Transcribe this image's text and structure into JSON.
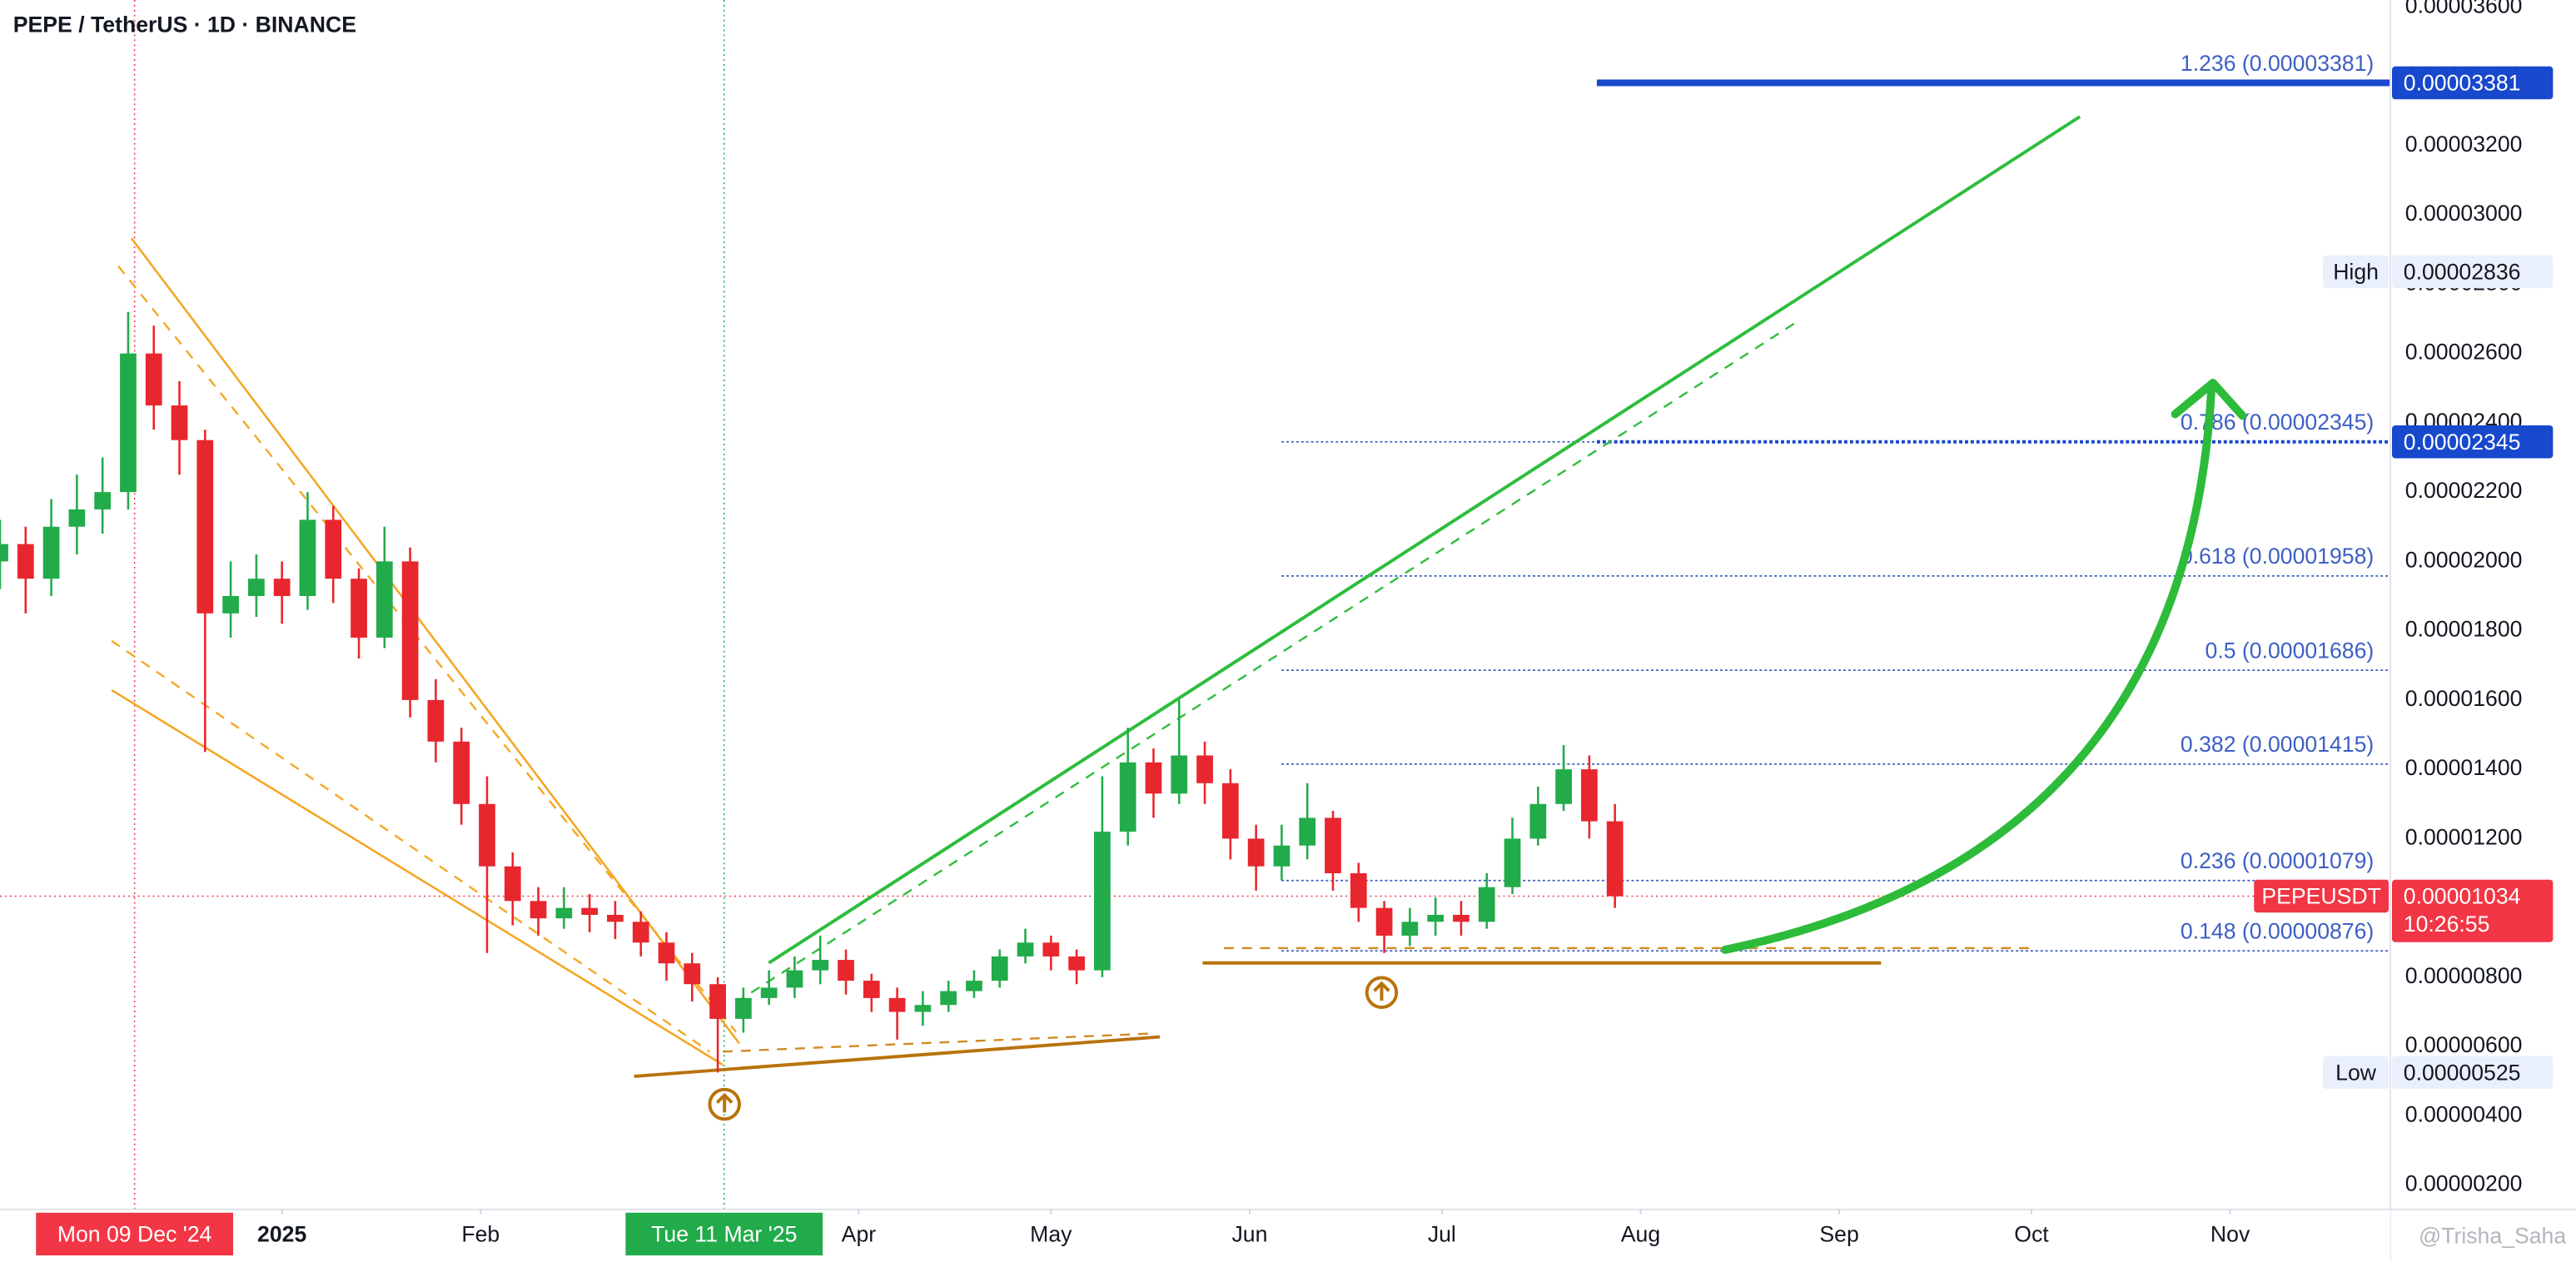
{
  "chart_data": {
    "type": "candlestick",
    "title": "PEPE / TetherUS · 1D · BINANCE",
    "up_color": "#22ab4a",
    "down_color": "#e8262e",
    "xlim": [
      "2024-11-18",
      "2025-11-26"
    ],
    "ylim": [
      1.3e-06,
      3.62e-05
    ],
    "yticks": [
      {
        "value": 2e-06,
        "label": "0.00000200"
      },
      {
        "value": 4e-06,
        "label": "0.00000400"
      },
      {
        "value": 6e-06,
        "label": "0.00000600"
      },
      {
        "value": 8e-06,
        "label": "0.00000800"
      },
      {
        "value": 1e-05,
        "label": "0.00001000"
      },
      {
        "value": 1.2e-05,
        "label": "0.00001200"
      },
      {
        "value": 1.4e-05,
        "label": "0.00001400"
      },
      {
        "value": 1.6e-05,
        "label": "0.00001600"
      },
      {
        "value": 1.8e-05,
        "label": "0.00001800"
      },
      {
        "value": 2e-05,
        "label": "0.00002000"
      },
      {
        "value": 2.2e-05,
        "label": "0.00002200"
      },
      {
        "value": 2.4e-05,
        "label": "0.00002400"
      },
      {
        "value": 2.6e-05,
        "label": "0.00002600"
      },
      {
        "value": 2.8e-05,
        "label": "0.00002800"
      },
      {
        "value": 3e-05,
        "label": "0.00003000"
      },
      {
        "value": 3.2e-05,
        "label": "0.00003200"
      },
      {
        "value": 3.4e-05,
        "label": "0.00003400"
      },
      {
        "value": 3.6e-05,
        "label": "0.00003600"
      }
    ],
    "xticks": [
      {
        "value": "2025-01-01",
        "label": "2025"
      },
      {
        "value": "2025-02-01",
        "label": "Feb"
      },
      {
        "value": "2025-04-01",
        "label": "Apr"
      },
      {
        "value": "2025-05-01",
        "label": "May"
      },
      {
        "value": "2025-06-01",
        "label": "Jun"
      },
      {
        "value": "2025-07-01",
        "label": "Jul"
      },
      {
        "value": "2025-08-01",
        "label": "Aug"
      },
      {
        "value": "2025-09-01",
        "label": "Sep"
      },
      {
        "value": "2025-10-01",
        "label": "Oct"
      },
      {
        "value": "2025-11-01",
        "label": "Nov"
      }
    ],
    "x_markers": [
      {
        "value": "2024-12-09",
        "label": "Mon 09 Dec '24",
        "color": "#f23645"
      },
      {
        "value": "2025-03-11",
        "label": "Tue 11 Mar '25",
        "color": "#22ab4a"
      }
    ],
    "x": [
      "2024-11-18",
      "2024-11-22",
      "2024-11-26",
      "2024-11-30",
      "2024-12-04",
      "2024-12-08",
      "2024-12-12",
      "2024-12-16",
      "2024-12-20",
      "2024-12-24",
      "2024-12-28",
      "2025-01-01",
      "2025-01-05",
      "2025-01-09",
      "2025-01-13",
      "2025-01-17",
      "2025-01-21",
      "2025-01-25",
      "2025-01-29",
      "2025-02-02",
      "2025-02-06",
      "2025-02-10",
      "2025-02-14",
      "2025-02-18",
      "2025-02-22",
      "2025-02-26",
      "2025-03-02",
      "2025-03-06",
      "2025-03-10",
      "2025-03-14",
      "2025-03-18",
      "2025-03-22",
      "2025-03-26",
      "2025-03-30",
      "2025-04-03",
      "2025-04-07",
      "2025-04-11",
      "2025-04-15",
      "2025-04-19",
      "2025-04-23",
      "2025-04-27",
      "2025-05-01",
      "2025-05-05",
      "2025-05-09",
      "2025-05-13",
      "2025-05-17",
      "2025-05-21",
      "2025-05-25",
      "2025-05-29",
      "2025-06-02",
      "2025-06-06",
      "2025-06-10",
      "2025-06-14",
      "2025-06-18",
      "2025-06-22",
      "2025-06-26",
      "2025-06-30",
      "2025-07-04",
      "2025-07-08",
      "2025-07-12",
      "2025-07-16",
      "2025-07-20",
      "2025-07-24",
      "2025-07-28"
    ],
    "open": [
      2e-05,
      2.05e-05,
      1.95e-05,
      2.1e-05,
      2.15e-05,
      2.2e-05,
      2.6e-05,
      2.45e-05,
      2.35e-05,
      1.85e-05,
      1.9e-05,
      1.95e-05,
      1.9e-05,
      2.12e-05,
      1.95e-05,
      1.78e-05,
      2e-05,
      1.6e-05,
      1.48e-05,
      1.3e-05,
      1.12e-05,
      1.02e-05,
      9.7e-06,
      1e-05,
      9.8e-06,
      9.6e-06,
      9e-06,
      8.4e-06,
      7.8e-06,
      6.8e-06,
      7.4e-06,
      7.7e-06,
      8.2e-06,
      8.5e-06,
      7.9e-06,
      7.4e-06,
      7e-06,
      7.2e-06,
      7.6e-06,
      7.9e-06,
      8.6e-06,
      9e-06,
      8.6e-06,
      8.2e-06,
      1.22e-05,
      1.42e-05,
      1.33e-05,
      1.44e-05,
      1.36e-05,
      1.2e-05,
      1.12e-05,
      1.18e-05,
      1.26e-05,
      1.1e-05,
      1e-05,
      9.2e-06,
      9.6e-06,
      9.8e-06,
      9.6e-06,
      1.06e-05,
      1.2e-05,
      1.3e-05,
      1.4e-05,
      1.25e-05
    ],
    "high": [
      2.12e-05,
      2.1e-05,
      2.18e-05,
      2.25e-05,
      2.3e-05,
      2.72e-05,
      2.68e-05,
      2.52e-05,
      2.38e-05,
      2e-05,
      2.02e-05,
      2e-05,
      2.2e-05,
      2.16e-05,
      1.98e-05,
      2.1e-05,
      2.04e-05,
      1.66e-05,
      1.52e-05,
      1.38e-05,
      1.16e-05,
      1.06e-05,
      1.06e-05,
      1.04e-05,
      1.02e-05,
      9.9e-06,
      9.3e-06,
      8.7e-06,
      8e-06,
      7.7e-06,
      8.2e-06,
      8.6e-06,
      9.2e-06,
      8.8e-06,
      8.1e-06,
      7.7e-06,
      7.6e-06,
      7.9e-06,
      8.2e-06,
      8.8e-06,
      9.4e-06,
      9.2e-06,
      8.8e-06,
      1.38e-05,
      1.52e-05,
      1.46e-05,
      1.6e-05,
      1.48e-05,
      1.4e-05,
      1.24e-05,
      1.24e-05,
      1.36e-05,
      1.28e-05,
      1.13e-05,
      1.02e-05,
      1e-05,
      1.03e-05,
      1.02e-05,
      1.1e-05,
      1.26e-05,
      1.35e-05,
      1.47e-05,
      1.44e-05,
      1.3e-05
    ],
    "low": [
      1.92e-05,
      1.85e-05,
      1.9e-05,
      2.02e-05,
      2.08e-05,
      2.15e-05,
      2.38e-05,
      2.25e-05,
      1.45e-05,
      1.78e-05,
      1.84e-05,
      1.82e-05,
      1.86e-05,
      1.88e-05,
      1.72e-05,
      1.75e-05,
      1.55e-05,
      1.42e-05,
      1.24e-05,
      8.7e-06,
      9.5e-06,
      9.2e-06,
      9.4e-06,
      9.3e-06,
      9.1e-06,
      8.6e-06,
      7.9e-06,
      7.3e-06,
      5.25e-06,
      6.4e-06,
      7.2e-06,
      7.4e-06,
      7.8e-06,
      7.5e-06,
      7e-06,
      6.2e-06,
      6.6e-06,
      7e-06,
      7.4e-06,
      7.7e-06,
      8.4e-06,
      8.2e-06,
      7.8e-06,
      8e-06,
      1.18e-05,
      1.26e-05,
      1.3e-05,
      1.3e-05,
      1.14e-05,
      1.05e-05,
      1.08e-05,
      1.14e-05,
      1.05e-05,
      9.6e-06,
      8.7e-06,
      8.9e-06,
      9.2e-06,
      9.2e-06,
      9.4e-06,
      1.04e-05,
      1.18e-05,
      1.28e-05,
      1.2e-05,
      1e-05
    ],
    "close": [
      2.05e-05,
      1.95e-05,
      2.1e-05,
      2.15e-05,
      2.2e-05,
      2.6e-05,
      2.45e-05,
      2.35e-05,
      1.85e-05,
      1.9e-05,
      1.95e-05,
      1.9e-05,
      2.12e-05,
      1.95e-05,
      1.78e-05,
      2e-05,
      1.6e-05,
      1.48e-05,
      1.3e-05,
      1.12e-05,
      1.02e-05,
      9.7e-06,
      1e-05,
      9.8e-06,
      9.6e-06,
      9e-06,
      8.4e-06,
      7.8e-06,
      6.8e-06,
      7.4e-06,
      7.7e-06,
      8.2e-06,
      8.5e-06,
      7.9e-06,
      7.4e-06,
      7e-06,
      7.2e-06,
      7.6e-06,
      7.9e-06,
      8.6e-06,
      9e-06,
      8.6e-06,
      8.2e-06,
      1.22e-05,
      1.42e-05,
      1.33e-05,
      1.44e-05,
      1.36e-05,
      1.2e-05,
      1.12e-05,
      1.18e-05,
      1.26e-05,
      1.1e-05,
      1e-05,
      9.2e-06,
      9.6e-06,
      9.8e-06,
      9.6e-06,
      1.06e-05,
      1.2e-05,
      1.3e-05,
      1.4e-05,
      1.25e-05,
      1.034e-05
    ],
    "fib_levels": [
      {
        "value": 3.381e-05,
        "label": "1.236 (0.00003381)"
      },
      {
        "value": 2.345e-05,
        "label": "0.786 (0.00002345)"
      },
      {
        "value": 1.958e-05,
        "label": "0.618 (0.00001958)"
      },
      {
        "value": 1.686e-05,
        "label": "0.5 (0.00001686)"
      },
      {
        "value": 1.415e-05,
        "label": "0.382 (0.00001415)"
      },
      {
        "value": 1.079e-05,
        "label": "0.236 (0.00001079)"
      },
      {
        "value": 8.76e-06,
        "label": "0.148 (0.00000876)"
      }
    ],
    "price_badges": [
      {
        "value": 3.381e-05,
        "label": "0.00003381",
        "color": "#1848cc"
      },
      {
        "value": 2.345e-05,
        "label": "0.00002345",
        "color": "#1848cc"
      }
    ],
    "high_marker": {
      "title": "High",
      "value": 2.836e-05,
      "label": "0.00002836"
    },
    "low_marker": {
      "title": "Low",
      "value": 5.25e-06,
      "label": "0.00000525"
    },
    "last_price": {
      "symbol": "PEPEUSDT",
      "value": 1.034e-05,
      "label": "0.00001034",
      "countdown": "10:26:55",
      "color": "#f23645"
    },
    "watermark": "@Trisha_Saha"
  }
}
